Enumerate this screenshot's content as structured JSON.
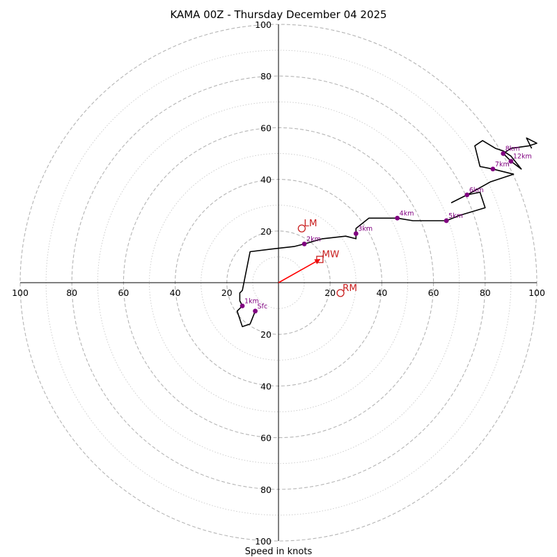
{
  "chart_data": {
    "type": "hodograph",
    "title": "KAMA 00Z - Thursday December 04 2025",
    "xlabel": "Speed in knots",
    "ylabel": "",
    "xlim": [
      -100,
      100
    ],
    "ylim": [
      -100,
      100
    ],
    "ring_major_step": 20,
    "ring_minor_step": 10,
    "ring_max": 100,
    "tick_labels": [
      "20",
      "40",
      "60",
      "80",
      "100"
    ],
    "grid": true,
    "colors": {
      "trace": "#000000",
      "height_marker": "#800080",
      "motion": "#c81e1e",
      "mean_wind_vector": "#ff0000",
      "ring_major": "#b4b4b4",
      "ring_minor": "#c8c8c8",
      "axis": "#000000"
    },
    "trace": [
      {
        "u": -9,
        "v": -11
      },
      {
        "u": -11,
        "v": -16
      },
      {
        "u": -14,
        "v": -17
      },
      {
        "u": -16,
        "v": -11
      },
      {
        "u": -14,
        "v": -9
      },
      {
        "u": -15,
        "v": -7
      },
      {
        "u": -15,
        "v": -4
      },
      {
        "u": -14,
        "v": -3
      },
      {
        "u": -11,
        "v": 12
      },
      {
        "u": -3,
        "v": 13
      },
      {
        "u": 6,
        "v": 14
      },
      {
        "u": 10,
        "v": 15
      },
      {
        "u": 17,
        "v": 17
      },
      {
        "u": 26,
        "v": 18
      },
      {
        "u": 30,
        "v": 17
      },
      {
        "u": 30,
        "v": 19
      },
      {
        "u": 30,
        "v": 21
      },
      {
        "u": 35,
        "v": 25
      },
      {
        "u": 38,
        "v": 25
      },
      {
        "u": 43,
        "v": 25
      },
      {
        "u": 46,
        "v": 25
      },
      {
        "u": 52,
        "v": 24
      },
      {
        "u": 60,
        "v": 24
      },
      {
        "u": 65,
        "v": 24
      },
      {
        "u": 70,
        "v": 26
      },
      {
        "u": 80,
        "v": 29
      },
      {
        "u": 78,
        "v": 35
      },
      {
        "u": 73,
        "v": 34
      },
      {
        "u": 67,
        "v": 31
      },
      {
        "u": 73,
        "v": 34
      },
      {
        "u": 82,
        "v": 39
      },
      {
        "u": 91,
        "v": 42
      },
      {
        "u": 83,
        "v": 44
      },
      {
        "u": 78,
        "v": 45
      },
      {
        "u": 76,
        "v": 53
      },
      {
        "u": 79,
        "v": 55
      },
      {
        "u": 84,
        "v": 52
      },
      {
        "u": 87,
        "v": 51
      },
      {
        "u": 90,
        "v": 49
      },
      {
        "u": 94,
        "v": 44
      },
      {
        "u": 90,
        "v": 47
      },
      {
        "u": 87,
        "v": 50
      },
      {
        "u": 90,
        "v": 52
      },
      {
        "u": 97,
        "v": 53
      },
      {
        "u": 100,
        "v": 54
      },
      {
        "u": 96,
        "v": 56
      },
      {
        "u": 97,
        "v": 54
      },
      {
        "u": 98,
        "v": 52
      }
    ],
    "height_markers": [
      {
        "label": "Sfc",
        "u": -9,
        "v": -11
      },
      {
        "label": "1km",
        "u": -14,
        "v": -9
      },
      {
        "label": "2km",
        "u": 10,
        "v": 15
      },
      {
        "label": "3km",
        "u": 30,
        "v": 19
      },
      {
        "label": "4km",
        "u": 46,
        "v": 25
      },
      {
        "label": "5km",
        "u": 65,
        "v": 24
      },
      {
        "label": "6km",
        "u": 73,
        "v": 34
      },
      {
        "label": "7km",
        "u": 83,
        "v": 44
      },
      {
        "label": "8km",
        "u": 87,
        "v": 50
      },
      {
        "label": "12km",
        "u": 90,
        "v": 47
      }
    ],
    "storm_motion": [
      {
        "label": "LM",
        "u": 9,
        "v": 21,
        "marker": "circle"
      },
      {
        "label": "MW",
        "u": 16,
        "v": 9,
        "marker": "square"
      },
      {
        "label": "RM",
        "u": 24,
        "v": -4,
        "marker": "circle"
      }
    ],
    "mean_wind_vector": {
      "from": {
        "u": 0,
        "v": 0
      },
      "to": {
        "u": 16,
        "v": 9
      }
    }
  }
}
